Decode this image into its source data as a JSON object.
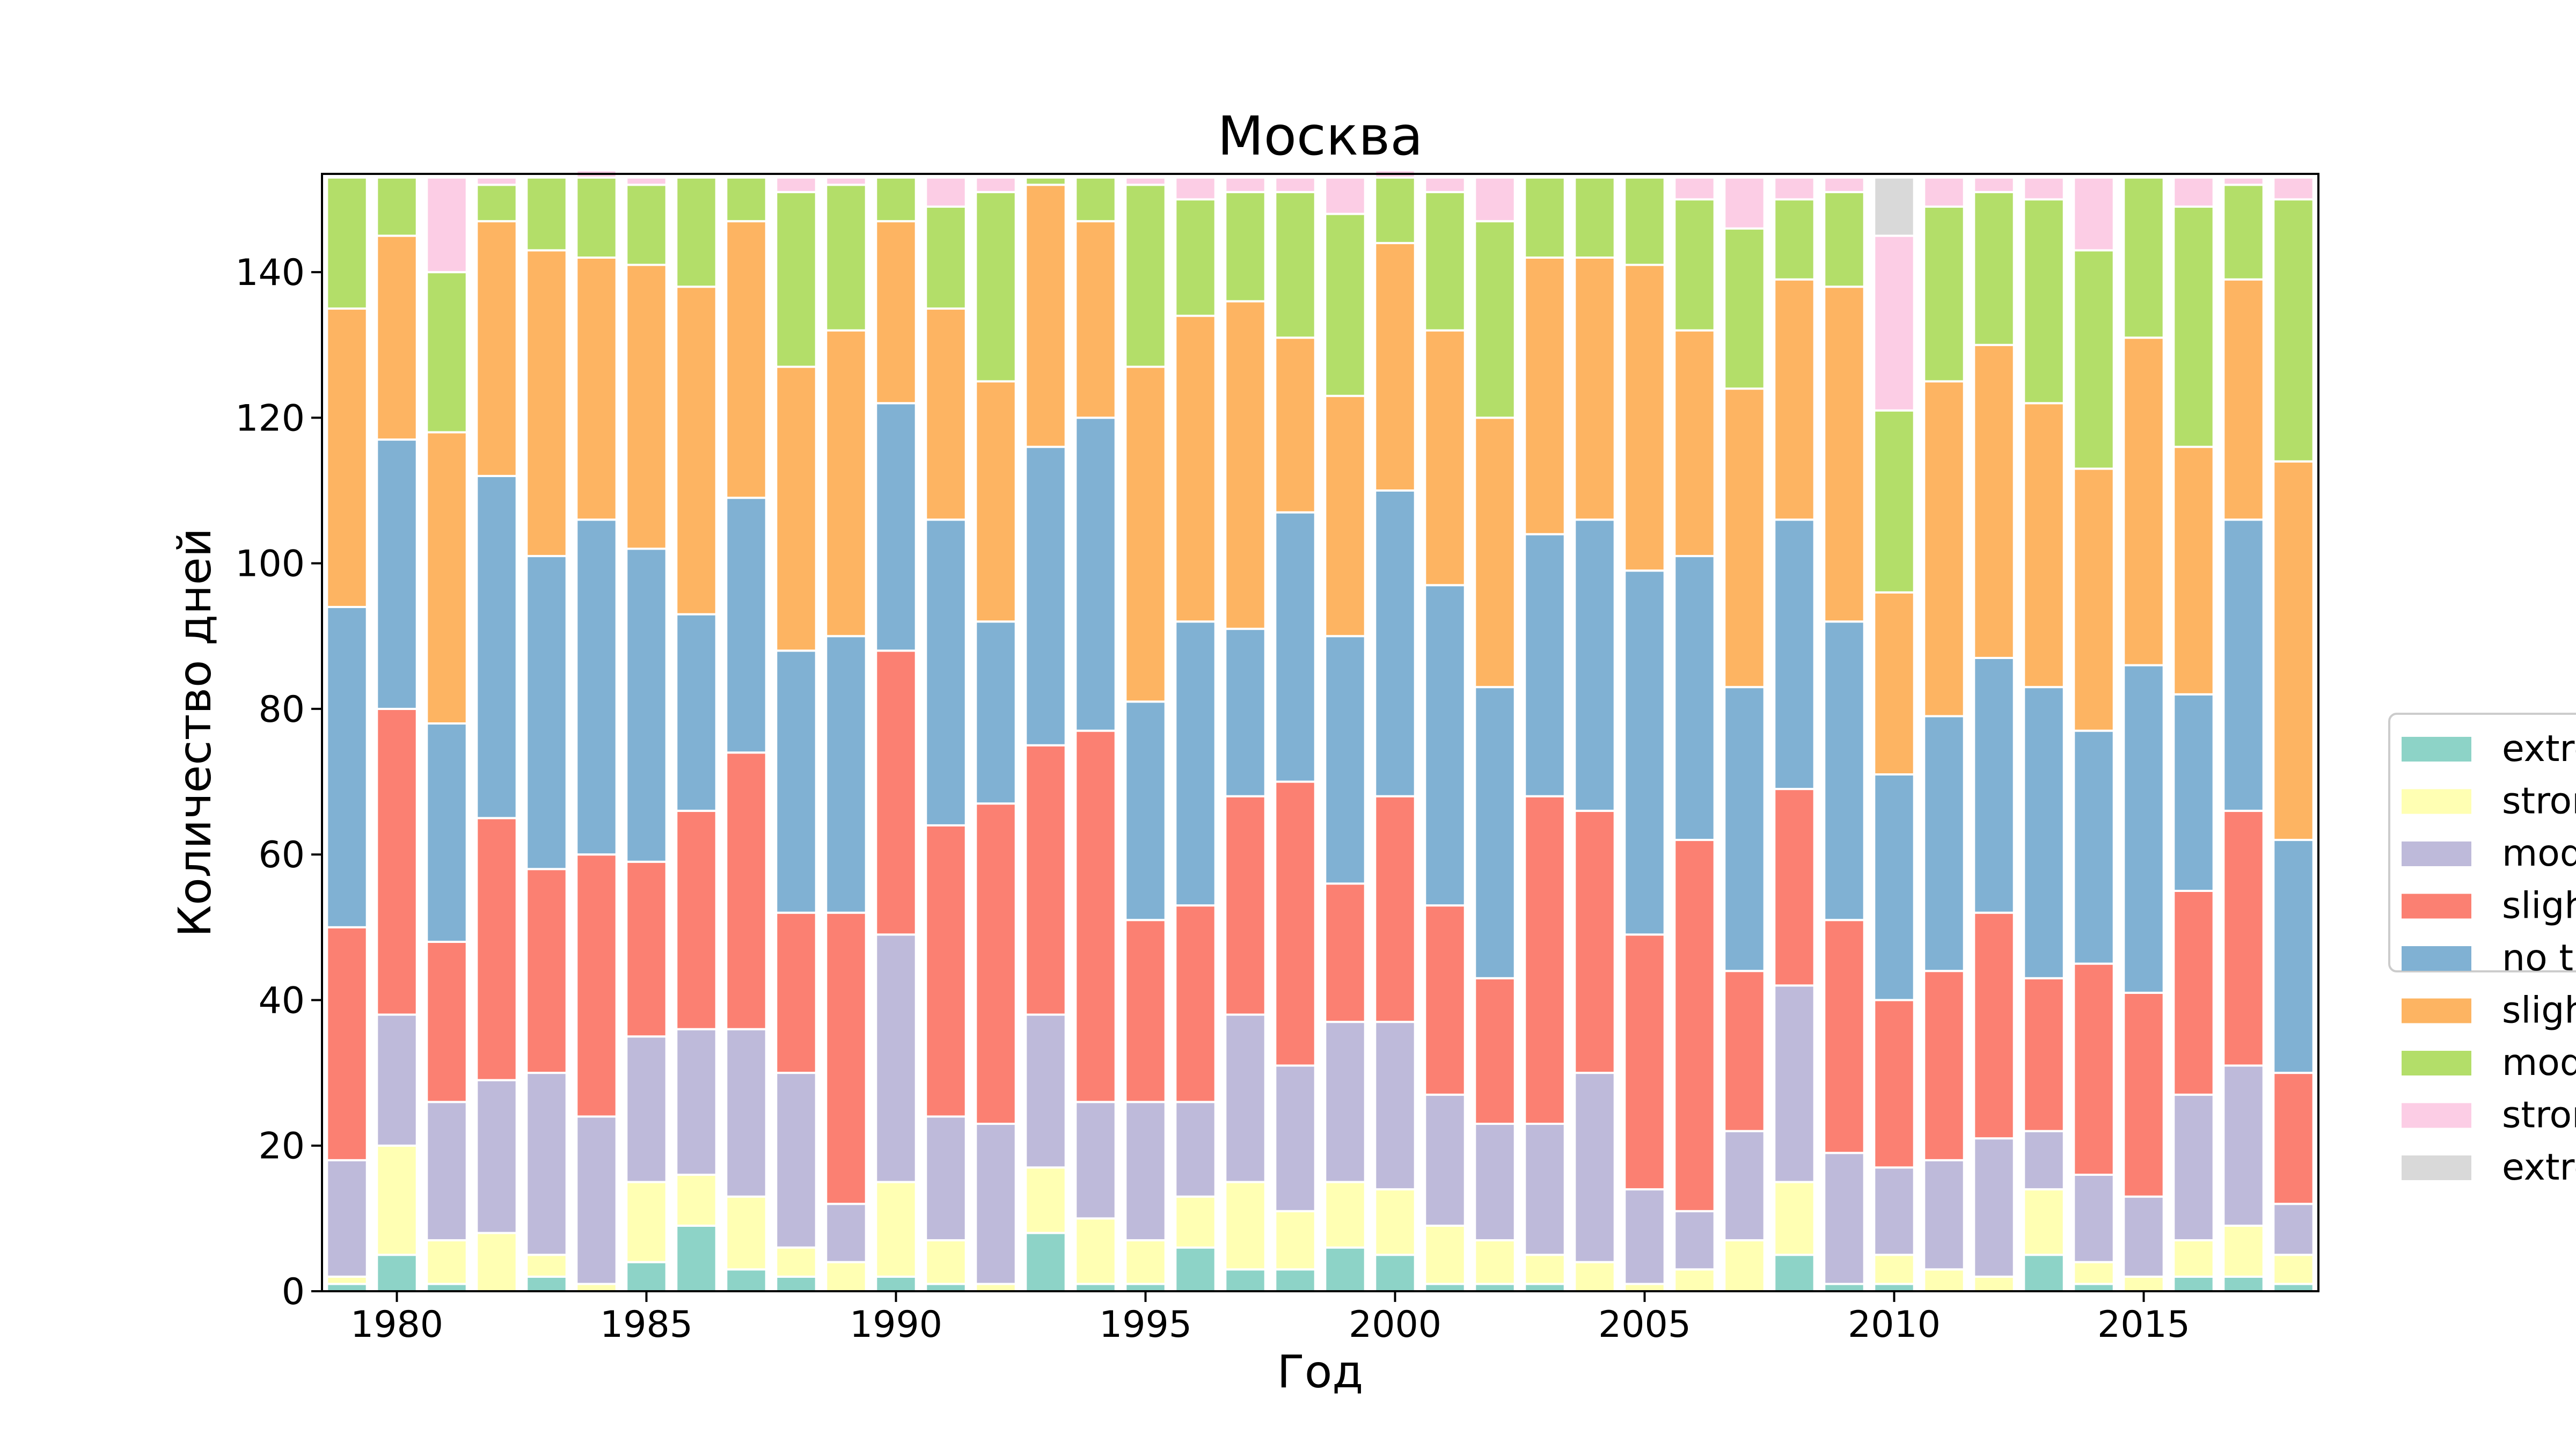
{
  "chart_data": {
    "type": "bar",
    "stacked": true,
    "title": "Москва",
    "xlabel": "Год",
    "ylabel": "Количество дней",
    "xlim": [
      1978.5,
      2018.5
    ],
    "ylim": [
      0,
      153.5
    ],
    "xticks": [
      1980,
      1985,
      1990,
      1995,
      2000,
      2005,
      2010,
      2015
    ],
    "yticks": [
      0,
      20,
      40,
      60,
      80,
      100,
      120,
      140
    ],
    "legend_position": "right, outside plot, clipped",
    "categories": [
      1979,
      1980,
      1981,
      1982,
      1983,
      1984,
      1985,
      1986,
      1987,
      1988,
      1989,
      1990,
      1991,
      1992,
      1993,
      1994,
      1995,
      1996,
      1997,
      1998,
      1999,
      2000,
      2001,
      2002,
      2003,
      2004,
      2005,
      2006,
      2007,
      2008,
      2009,
      2010,
      2011,
      2012,
      2013,
      2014,
      2015,
      2016,
      2017,
      2018
    ],
    "series": [
      {
        "name": "extre",
        "color": "#8dd3c7",
        "values": [
          1,
          5,
          1,
          0,
          2,
          0,
          4,
          9,
          3,
          2,
          0,
          2,
          1,
          0,
          8,
          1,
          1,
          6,
          3,
          3,
          6,
          5,
          1,
          1,
          1,
          0,
          0,
          0,
          0,
          5,
          1,
          1,
          0,
          0,
          5,
          1,
          0,
          2,
          2,
          1
        ]
      },
      {
        "name": "stror",
        "color": "#ffffb3",
        "values": [
          1,
          15,
          6,
          8,
          3,
          1,
          11,
          7,
          10,
          4,
          4,
          13,
          6,
          1,
          9,
          9,
          6,
          7,
          12,
          8,
          9,
          9,
          8,
          6,
          4,
          4,
          1,
          3,
          7,
          10,
          0,
          4,
          3,
          2,
          9,
          3,
          2,
          5,
          7,
          4
        ]
      },
      {
        "name": "mod",
        "color": "#bebada",
        "values": [
          16,
          18,
          19,
          21,
          25,
          23,
          20,
          20,
          23,
          24,
          8,
          34,
          17,
          22,
          21,
          16,
          19,
          13,
          23,
          20,
          22,
          23,
          18,
          16,
          18,
          26,
          13,
          8,
          15,
          27,
          18,
          12,
          15,
          19,
          8,
          12,
          11,
          20,
          22,
          7
        ]
      },
      {
        "name": "sligh",
        "color": "#fb8072",
        "values": [
          32,
          42,
          22,
          36,
          28,
          36,
          24,
          30,
          38,
          22,
          40,
          39,
          40,
          44,
          37,
          51,
          25,
          27,
          30,
          39,
          19,
          31,
          26,
          20,
          45,
          36,
          35,
          51,
          22,
          27,
          32,
          23,
          26,
          31,
          21,
          29,
          28,
          28,
          35,
          18
        ]
      },
      {
        "name": "no t",
        "color": "#80b1d3",
        "values": [
          44,
          37,
          30,
          47,
          43,
          46,
          43,
          27,
          35,
          36,
          38,
          34,
          42,
          25,
          41,
          43,
          30,
          39,
          23,
          37,
          34,
          42,
          44,
          40,
          36,
          40,
          50,
          39,
          39,
          37,
          41,
          31,
          35,
          35,
          40,
          32,
          45,
          27,
          40,
          32
        ]
      },
      {
        "name": "sligh",
        "color": "#fdb462",
        "values": [
          41,
          28,
          40,
          35,
          42,
          36,
          39,
          45,
          38,
          39,
          42,
          25,
          29,
          33,
          36,
          27,
          46,
          42,
          45,
          24,
          33,
          34,
          35,
          37,
          38,
          36,
          42,
          31,
          41,
          33,
          46,
          25,
          46,
          43,
          39,
          36,
          45,
          34,
          33,
          52
        ]
      },
      {
        "name": "mod",
        "color": "#b3de69",
        "values": [
          18,
          8,
          22,
          5,
          10,
          11,
          11,
          15,
          6,
          24,
          20,
          6,
          14,
          26,
          1,
          6,
          25,
          16,
          15,
          20,
          25,
          9,
          19,
          27,
          11,
          11,
          12,
          18,
          22,
          11,
          13,
          25,
          24,
          21,
          28,
          30,
          22,
          33,
          13,
          36
        ]
      },
      {
        "name": "stror",
        "color": "#fccde5",
        "values": [
          0,
          0,
          13,
          1,
          0,
          1,
          1,
          0,
          0,
          2,
          1,
          0,
          4,
          2,
          0,
          0,
          1,
          3,
          2,
          2,
          5,
          1,
          2,
          6,
          0,
          0,
          0,
          3,
          7,
          3,
          2,
          24,
          4,
          2,
          3,
          10,
          0,
          4,
          1,
          3
        ]
      },
      {
        "name": "extre",
        "color": "#d9d9d9",
        "values": [
          0,
          0,
          0,
          0,
          0,
          0,
          0,
          0,
          0,
          0,
          0,
          0,
          0,
          0,
          0,
          0,
          0,
          0,
          0,
          0,
          0,
          0,
          0,
          0,
          0,
          0,
          0,
          0,
          0,
          0,
          0,
          8,
          0,
          0,
          0,
          0,
          0,
          0,
          0,
          0
        ]
      }
    ]
  }
}
